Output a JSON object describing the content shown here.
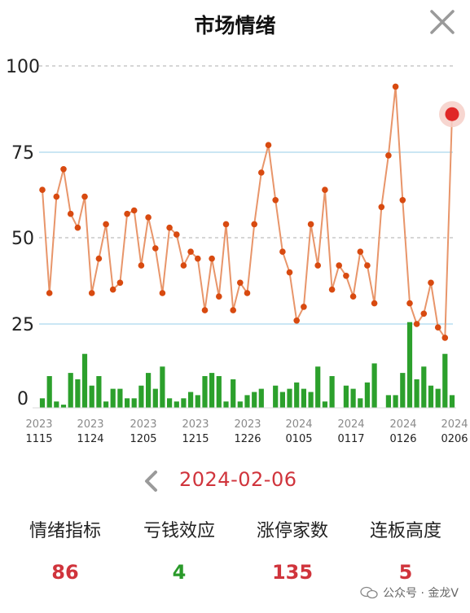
{
  "header": {
    "title": "市场情绪"
  },
  "chart_data": {
    "type": "bar+line",
    "yticks": [
      "100",
      "75",
      "50",
      "25",
      "0"
    ],
    "ylim": [
      0,
      100
    ],
    "x_ticks": [
      {
        "year": "2023",
        "day": "1115"
      },
      {
        "year": "2023",
        "day": "1124"
      },
      {
        "year": "2023",
        "day": "1205"
      },
      {
        "year": "2023",
        "day": "1215"
      },
      {
        "year": "2023",
        "day": "1226"
      },
      {
        "year": "2024",
        "day": "0105"
      },
      {
        "year": "2024",
        "day": "0117"
      },
      {
        "year": "2024",
        "day": "0126"
      },
      {
        "year": "2024",
        "day": "0206"
      }
    ],
    "series": [
      {
        "name": "",
        "kind": "line",
        "color": "#e8956a",
        "point_color": "#d84a10",
        "values": [
          64,
          34,
          62,
          70,
          57,
          53,
          62,
          34,
          44,
          54,
          35,
          37,
          57,
          58,
          42,
          56,
          47,
          34,
          53,
          51,
          42,
          46,
          44,
          29,
          44,
          33,
          54,
          29,
          37,
          34,
          54,
          69,
          77,
          61,
          46,
          40,
          26,
          30,
          54,
          42,
          64,
          35,
          42,
          39,
          33,
          46,
          42,
          31,
          59,
          74,
          94,
          61,
          31,
          25,
          28,
          37,
          24,
          21,
          86
        ]
      },
      {
        "name": "",
        "kind": "bar",
        "color": "#2ca02c",
        "values": [
          3,
          10,
          2,
          1,
          11,
          9,
          17,
          7,
          10,
          2,
          6,
          6,
          3,
          3,
          7,
          11,
          6,
          13,
          3,
          2,
          3,
          5,
          4,
          10,
          11,
          10,
          2,
          9,
          2,
          4,
          5,
          6,
          0,
          7,
          5,
          6,
          8,
          6,
          5,
          13,
          2,
          10,
          0,
          7,
          6,
          3,
          8,
          14,
          0,
          4,
          4,
          11,
          27,
          9,
          13,
          7,
          6,
          17,
          4
        ]
      }
    ],
    "highlight_index": 58
  },
  "date_nav": {
    "prev_label": "‹",
    "date": "2024-02-06"
  },
  "stats": [
    {
      "label": "情绪指标",
      "value": "86",
      "color": "#d0343c"
    },
    {
      "label": "亏钱效应",
      "value": "4",
      "color": "#2a9a2a"
    },
    {
      "label": "涨停家数",
      "value": "135",
      "color": "#d0343c"
    },
    {
      "label": "连板高度",
      "value": "5",
      "color": "#d0343c"
    }
  ],
  "watermark": {
    "text": "公众号 · 金龙V"
  }
}
